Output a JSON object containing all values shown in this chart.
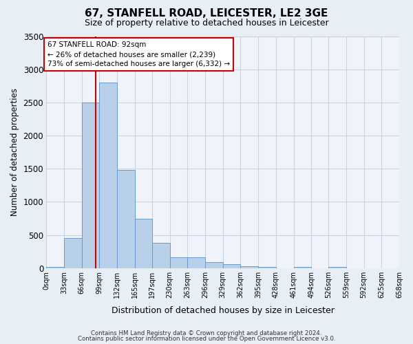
{
  "title": "67, STANFELL ROAD, LEICESTER, LE2 3GE",
  "subtitle": "Size of property relative to detached houses in Leicester",
  "xlabel": "Distribution of detached houses by size in Leicester",
  "ylabel": "Number of detached properties",
  "bin_edges": [
    0,
    33,
    66,
    99,
    132,
    165,
    197,
    230,
    263,
    296,
    329,
    362,
    395,
    428,
    461,
    494,
    526,
    559,
    592,
    625,
    658
  ],
  "bin_labels": [
    "0sqm",
    "33sqm",
    "66sqm",
    "99sqm",
    "132sqm",
    "165sqm",
    "197sqm",
    "230sqm",
    "263sqm",
    "296sqm",
    "329sqm",
    "362sqm",
    "395sqm",
    "428sqm",
    "461sqm",
    "494sqm",
    "526sqm",
    "559sqm",
    "592sqm",
    "625sqm",
    "658sqm"
  ],
  "bar_heights": [
    15,
    460,
    2500,
    2800,
    1480,
    750,
    380,
    160,
    160,
    90,
    60,
    25,
    15,
    0,
    15,
    0,
    15,
    0,
    0,
    0
  ],
  "bar_color": "#b8d0e8",
  "bar_edgecolor": "#6699cc",
  "grid_color": "#c8d4e4",
  "property_value": 92,
  "vline_color": "#cc0000",
  "annotation_box_edgecolor": "#cc0000",
  "annotation_text_line1": "67 STANFELL ROAD: 92sqm",
  "annotation_text_line2": "← 26% of detached houses are smaller (2,239)",
  "annotation_text_line3": "73% of semi-detached houses are larger (6,332) →",
  "ylim": [
    0,
    3500
  ],
  "yticks": [
    0,
    500,
    1000,
    1500,
    2000,
    2500,
    3000,
    3500
  ],
  "footer_line1": "Contains HM Land Registry data © Crown copyright and database right 2024.",
  "footer_line2": "Contains public sector information licensed under the Open Government Licence v3.0.",
  "bg_color": "#e8eef6",
  "plot_bg_color": "#f0f4fa"
}
